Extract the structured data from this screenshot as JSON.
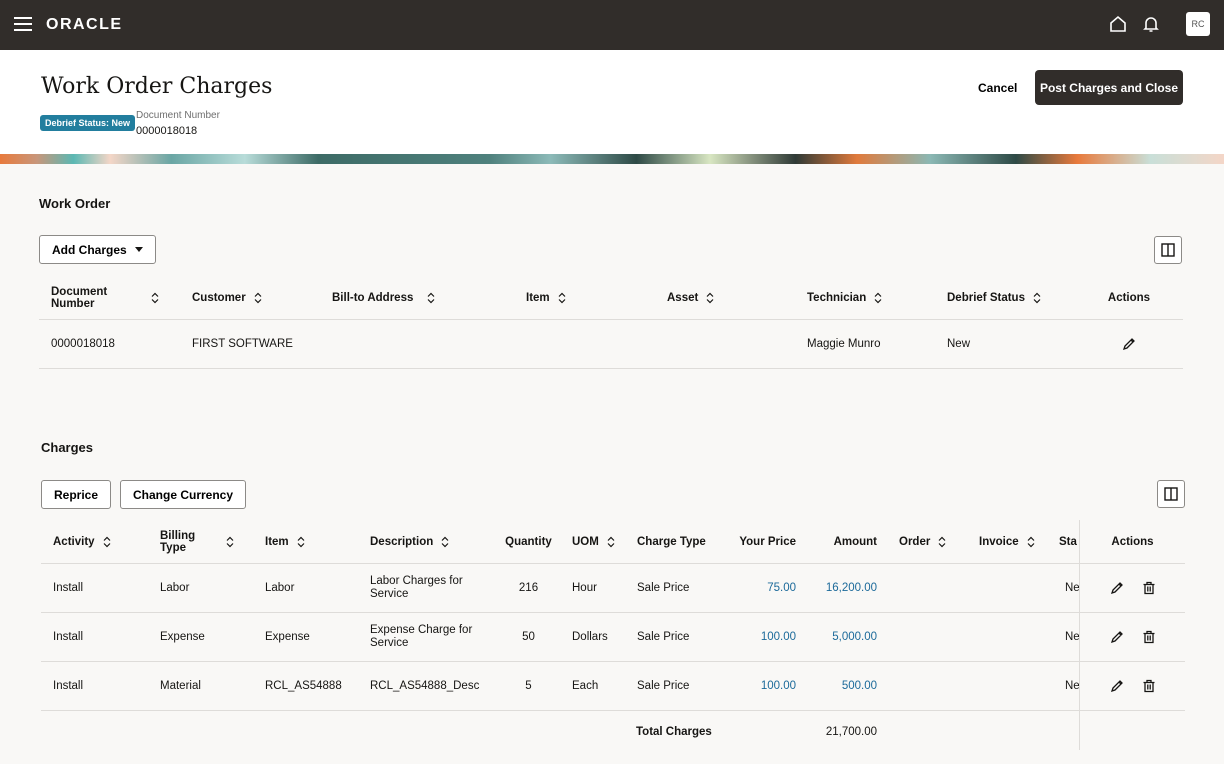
{
  "topbar": {
    "brand": "ORACLE",
    "avatar": "RC"
  },
  "header": {
    "title": "Work Order Charges",
    "badge": "Debrief Status: New",
    "doc_label": "Document Number",
    "doc_value": "0000018018",
    "cancel": "Cancel",
    "post": "Post Charges and Close"
  },
  "work_order": {
    "title": "Work Order",
    "add_charges": "Add Charges",
    "columns": [
      "Document Number",
      "Customer",
      "Bill-to Address",
      "Item",
      "Asset",
      "Technician",
      "Debrief Status",
      "Actions"
    ],
    "row": [
      "0000018018",
      "FIRST  SOFTWARE",
      "",
      "",
      "",
      "Maggie Munro",
      "New"
    ]
  },
  "charges": {
    "title": "Charges",
    "reprice": "Reprice",
    "change_currency": "Change Currency",
    "columns": [
      "Activity",
      "Billing Type",
      "Item",
      "Description",
      "Quantity",
      "UOM",
      "Charge Type",
      "Your Price",
      "Amount",
      "Order",
      "Invoice",
      "Sta",
      "Actions"
    ],
    "rows": [
      [
        "Install",
        "Labor",
        "Labor",
        "Labor Charges for Service",
        "216",
        "Hour",
        "Sale Price",
        "75.00",
        "16,200.00",
        "",
        "",
        "Ne"
      ],
      [
        "Install",
        "Expense",
        "Expense",
        "Expense Charge for Service",
        "50",
        "Dollars",
        "Sale Price",
        "100.00",
        "5,000.00",
        "",
        "",
        "Ne"
      ],
      [
        "Install",
        "Material",
        "RCL_AS54888",
        "RCL_AS54888_Desc",
        "5",
        "Each",
        "Sale Price",
        "100.00",
        "500.00",
        "",
        "",
        "Ne"
      ]
    ],
    "total_label": "Total Charges",
    "total_value": "21,700.00"
  }
}
